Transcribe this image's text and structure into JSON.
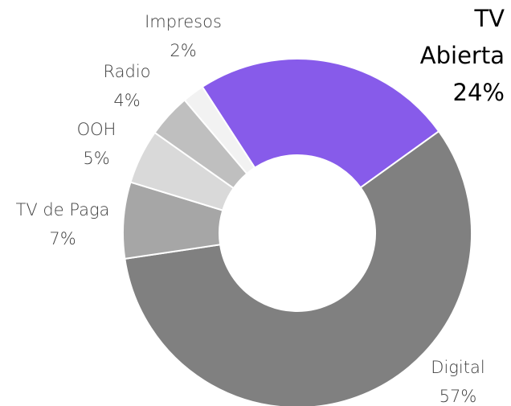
{
  "chart_data": {
    "type": "donut",
    "categories": [
      "TV Abierta",
      "Digital",
      "TV de Paga",
      "OOH",
      "Radio",
      "Impresos"
    ],
    "values": [
      24,
      57,
      7,
      5,
      4,
      2
    ],
    "value_labels": [
      "24%",
      "57%",
      "7%",
      "5%",
      "4%",
      "2%"
    ],
    "colors": [
      "#875bea",
      "#808080",
      "#a6a6a6",
      "#d9d9d9",
      "#bfbfbf",
      "#f2f2f2"
    ]
  }
}
